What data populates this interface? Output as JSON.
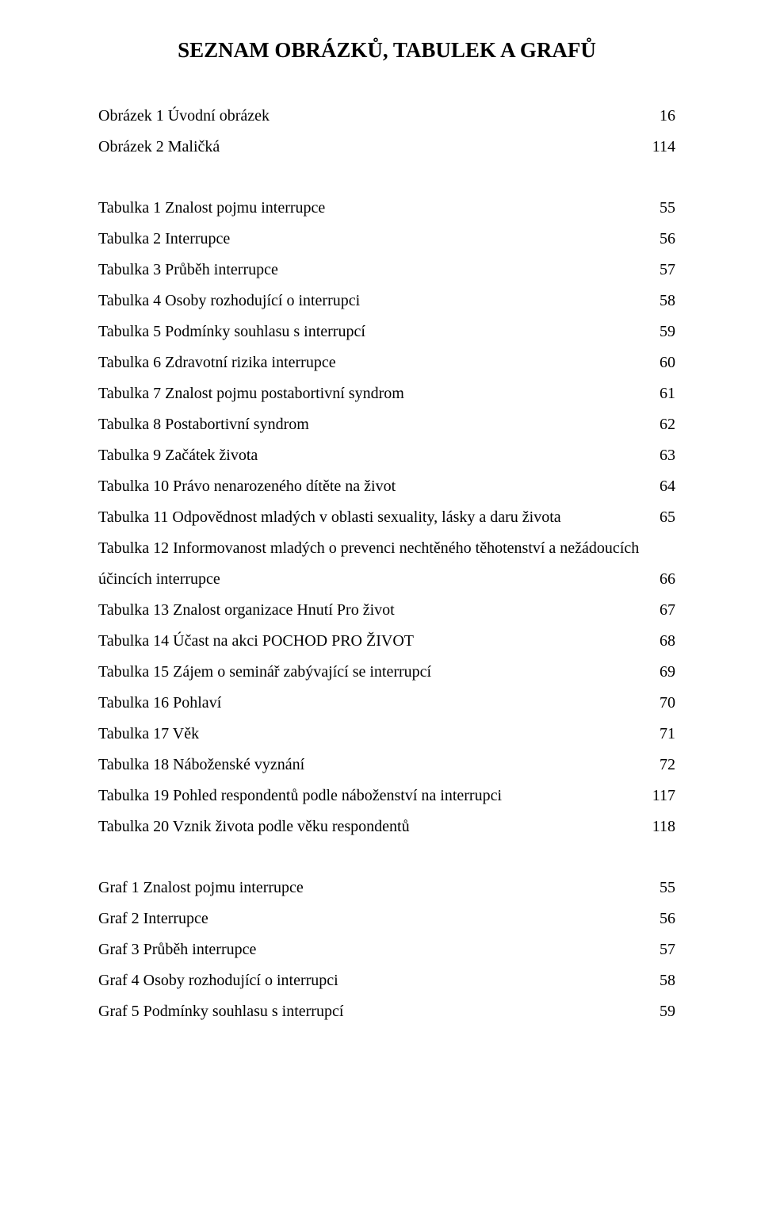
{
  "title": "SEZNAM OBRÁZKŮ, TABULEK A GRAFŮ",
  "sections": {
    "obrazky": [
      {
        "label": "Obrázek 1 Úvodní obrázek",
        "page": "16"
      },
      {
        "label": "Obrázek 2 Maličká",
        "page": "114"
      }
    ],
    "tabulky": [
      {
        "label": "Tabulka 1 Znalost pojmu interrupce",
        "page": "55"
      },
      {
        "label": "Tabulka 2 Interrupce",
        "page": "56"
      },
      {
        "label": "Tabulka 3 Průběh interrupce",
        "page": "57"
      },
      {
        "label": "Tabulka 4 Osoby rozhodující o interrupci",
        "page": "58"
      },
      {
        "label": "Tabulka 5 Podmínky souhlasu s interrupcí",
        "page": "59"
      },
      {
        "label": "Tabulka 6 Zdravotní rizika interrupce",
        "page": "60"
      },
      {
        "label": "Tabulka 7 Znalost pojmu postabortivní syndrom",
        "page": "61"
      },
      {
        "label": "Tabulka 8 Postabortivní syndrom",
        "page": "62"
      },
      {
        "label": "Tabulka 9 Začátek života",
        "page": "63"
      },
      {
        "label": "Tabulka 10 Právo nenarozeného dítěte na život",
        "page": "64"
      },
      {
        "label": "Tabulka 11 Odpovědnost mladých v oblasti sexuality, lásky a daru života",
        "page": "65"
      },
      {
        "wrap": true,
        "line1": "Tabulka 12 Informovanost mladých o prevenci nechtěného těhotenství a nežádoucích",
        "line2": "účincích interrupce",
        "page": "66"
      },
      {
        "label": "Tabulka 13 Znalost organizace Hnutí Pro život",
        "page": "67"
      },
      {
        "label": "Tabulka 14 Účast na akci POCHOD PRO ŽIVOT",
        "page": "68"
      },
      {
        "label": "Tabulka 15 Zájem o seminář zabývající se interrupcí",
        "page": "69"
      },
      {
        "label": "Tabulka 16 Pohlaví",
        "page": "70"
      },
      {
        "label": "Tabulka 17 Věk",
        "page": "71"
      },
      {
        "label": "Tabulka 18 Náboženské vyznání",
        "page": "72"
      },
      {
        "label": "Tabulka 19 Pohled respondentů podle náboženství na interrupci",
        "page": "117"
      },
      {
        "label": "Tabulka 20 Vznik života podle věku respondentů",
        "page": "118"
      }
    ],
    "grafy": [
      {
        "label": "Graf 1 Znalost pojmu interrupce",
        "page": "55"
      },
      {
        "label": "Graf 2 Interrupce",
        "page": "56"
      },
      {
        "label": "Graf 3 Průběh interrupce",
        "page": "57"
      },
      {
        "label": "Graf 4 Osoby rozhodující o interrupci",
        "page": "58"
      },
      {
        "label": "Graf 5 Podmínky souhlasu s interrupcí",
        "page": "59"
      }
    ]
  }
}
